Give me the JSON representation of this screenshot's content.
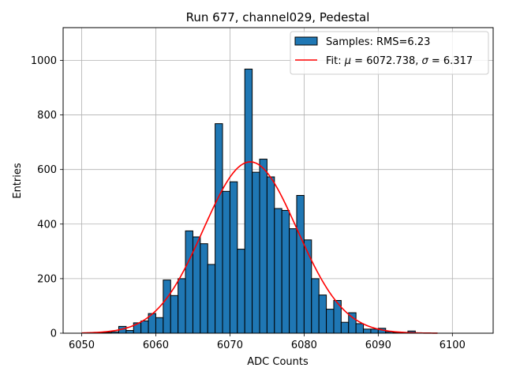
{
  "chart_data": {
    "type": "bar",
    "title": "Run 677, channel029, Pedestal",
    "xlabel": "ADC Counts",
    "ylabel": "Entries",
    "xlim": [
      6047.5,
      6105.5
    ],
    "ylim": [
      0,
      1120
    ],
    "xticks": [
      6050,
      6060,
      6070,
      6080,
      6090,
      6100
    ],
    "yticks": [
      0,
      200,
      400,
      600,
      800,
      1000
    ],
    "grid": true,
    "legend_position": "top-right",
    "histogram": {
      "name": "Samples: RMS=6.23",
      "color": "#1f77b4",
      "edgecolor": "#000000",
      "bin_width": 1,
      "bin_starts": [
        6052,
        6053,
        6054,
        6055,
        6056,
        6057,
        6058,
        6059,
        6060,
        6061,
        6062,
        6063,
        6064,
        6065,
        6066,
        6067,
        6068,
        6069,
        6070,
        6071,
        6072,
        6073,
        6074,
        6075,
        6076,
        6077,
        6078,
        6079,
        6080,
        6081,
        6082,
        6083,
        6084,
        6085,
        6086,
        6087,
        6088,
        6089,
        6090,
        6091,
        6092,
        6093,
        6094,
        6095
      ],
      "counts": [
        2,
        3,
        5,
        25,
        10,
        38,
        45,
        72,
        57,
        195,
        138,
        200,
        375,
        353,
        328,
        252,
        768,
        520,
        555,
        308,
        968,
        590,
        638,
        573,
        457,
        450,
        383,
        505,
        342,
        200,
        140,
        88,
        120,
        40,
        75,
        35,
        15,
        15,
        18,
        5,
        3,
        2,
        8,
        1
      ]
    },
    "fit": {
      "name": "Fit: μ = 6072.738, σ = 6.317",
      "label_parts": [
        "Fit: ",
        "μ",
        " = 6072.738, ",
        "σ",
        " = 6.317"
      ],
      "color": "#ff0000",
      "mu": 6072.738,
      "sigma": 6.317,
      "amplitude": 628,
      "x_range": [
        6050,
        6098
      ]
    }
  }
}
